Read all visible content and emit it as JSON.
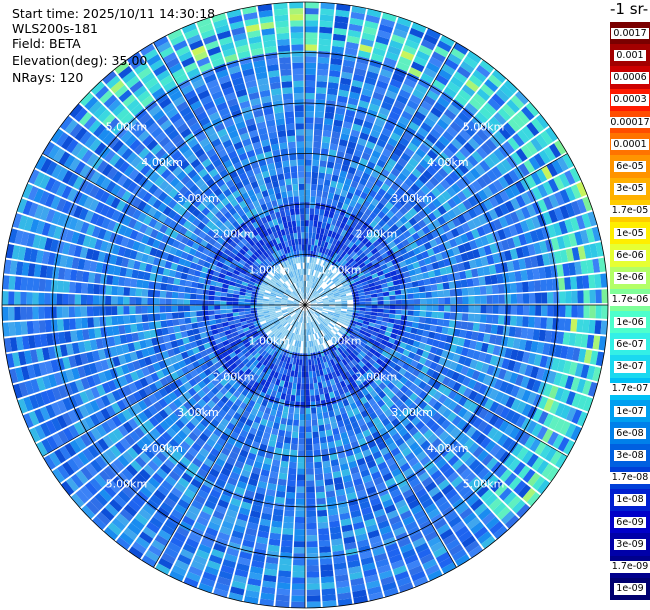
{
  "header": {
    "start_time": "Start time: 2025/10/11 14:30:18",
    "instrument": "WLS200s-181",
    "field": "Field: BETA",
    "elevation": "Elevation(deg): 35.00",
    "nrays": "NRays: 120"
  },
  "colorbar": {
    "title": "-1 sr-",
    "labels": [
      "0.0017",
      "0.001",
      "0.0006",
      "0.0003",
      "0.00017",
      "0.0001",
      "6e-05",
      "3e-05",
      "1.7e-05",
      "1e-05",
      "6e-06",
      "3e-06",
      "1.7e-06",
      "1e-06",
      "6e-07",
      "3e-07",
      "1.7e-07",
      "1e-07",
      "6e-08",
      "3e-08",
      "1.7e-08",
      "1e-08",
      "6e-09",
      "3e-09",
      "1.7e-09",
      "1e-09"
    ],
    "colors": [
      "#7a0000",
      "#a30000",
      "#cc0000",
      "#ff1a00",
      "#ff4d00",
      "#ff7300",
      "#ff9400",
      "#ffb000",
      "#ffcc00",
      "#ffee00",
      "#e6ff33",
      "#b3ff66",
      "#80ff99",
      "#4dffcc",
      "#33f0e6",
      "#1ad9f0",
      "#00c0f5",
      "#009ff0",
      "#0080ea",
      "#0060e0",
      "#0040d8",
      "#0020d0",
      "#0000c8",
      "#0000a8",
      "#00008c",
      "#000070"
    ]
  },
  "chart_data": {
    "type": "heatmap",
    "projection": "polar PPI scan",
    "field": "BETA",
    "elevation_deg": 35.0,
    "n_rays": 120,
    "radial_unit": "km",
    "range_km": [
      0,
      6.0
    ],
    "range_rings_km": [
      1,
      2,
      3,
      4,
      5
    ],
    "ring_labels": [
      "1.00km",
      "2.00km",
      "3.00km",
      "4.00km",
      "5.00km"
    ],
    "color_scale": "log",
    "value_range": [
      1e-09,
      0.0017
    ],
    "typical_value_near_field": 1.7e-06,
    "typical_value_mid_range": 6e-08,
    "typical_value_far_range": 3e-07,
    "grid": true
  }
}
